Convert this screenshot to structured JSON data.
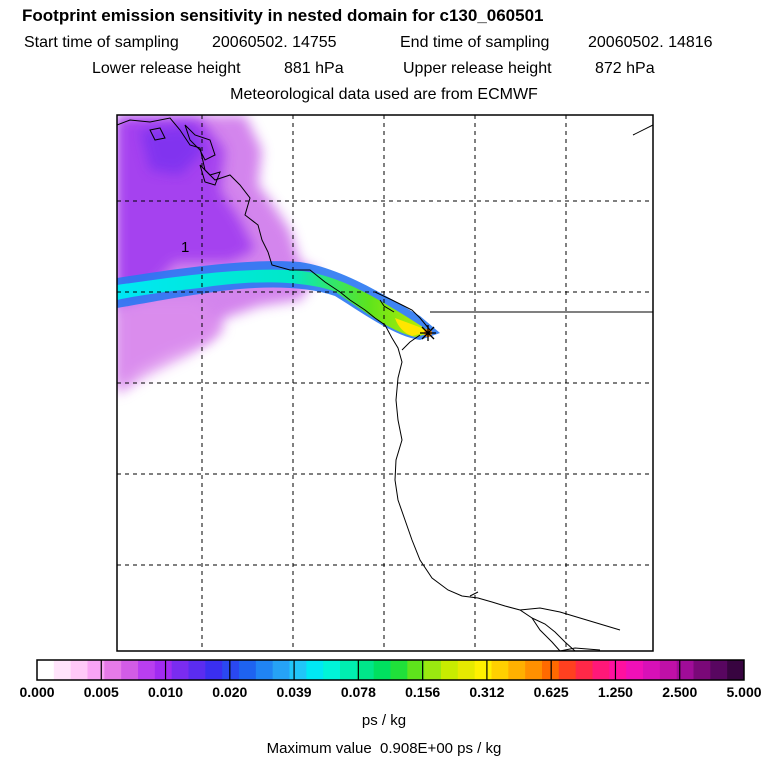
{
  "header": {
    "title": "Footprint emission sensitivity in nested domain for c130_060501",
    "start_label": "Start time of sampling",
    "start_value": "20060502. 14755",
    "end_label": "End time of sampling",
    "end_value": "20060502. 14816",
    "lower_label": "Lower release height",
    "lower_value": "881 hPa",
    "upper_label": "Upper release height",
    "upper_value": "872 hPa",
    "met_note": "Meteorological data used are from ECMWF"
  },
  "map": {
    "contour_label": "1",
    "receptor_marker": "star-icon"
  },
  "colorbar": {
    "ticks": [
      "0.000",
      "0.005",
      "0.010",
      "0.020",
      "0.039",
      "0.078",
      "0.156",
      "0.312",
      "0.625",
      "1.250",
      "2.500",
      "5.000"
    ],
    "colors": [
      "#ffffff",
      "#ffe4fb",
      "#ffc9f8",
      "#f9a4f5",
      "#e67ae8",
      "#d25ce6",
      "#b93ef0",
      "#a12bf2",
      "#7a2cf0",
      "#5b2cf0",
      "#3a2ff0",
      "#2a48f2",
      "#1e63f0",
      "#2084f4",
      "#26a2f6",
      "#20c6f8",
      "#00e8f4",
      "#00f4d8",
      "#00eeb0",
      "#00e68a",
      "#00e060",
      "#20e03a",
      "#5ee41c",
      "#9ae810",
      "#c8ec00",
      "#e6ea00",
      "#fff000",
      "#ffd000",
      "#ffb000",
      "#ff9000",
      "#ff6a00",
      "#ff4020",
      "#ff2848",
      "#ff1878",
      "#ff10a0",
      "#f010b8",
      "#d810b8",
      "#c010a8",
      "#a00c98",
      "#7a0878",
      "#580660",
      "#380440"
    ],
    "unit": "ps / kg",
    "max_label": "Maximum value",
    "max_value": "0.908E+00 ps / kg"
  }
}
